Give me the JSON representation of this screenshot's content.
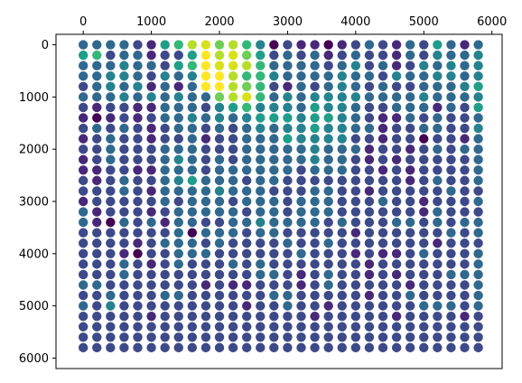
{
  "chart_data": {
    "type": "scatter",
    "title": "",
    "xlabel": "",
    "ylabel": "",
    "xlim": [
      -400,
      6150
    ],
    "ylim": [
      6200,
      -200
    ],
    "x_axis_position": "top",
    "y_inverted": true,
    "grid": false,
    "legend": "none",
    "colormap": "viridis",
    "x_ticks": [
      0,
      1000,
      2000,
      3000,
      4000,
      5000,
      6000
    ],
    "x_tick_labels": [
      "0",
      "1000",
      "2000",
      "3000",
      "4000",
      "5000",
      "6000"
    ],
    "y_ticks": [
      0,
      1000,
      2000,
      3000,
      4000,
      5000,
      6000
    ],
    "y_tick_labels": [
      "0",
      "1000",
      "2000",
      "3000",
      "4000",
      "5000",
      "6000"
    ],
    "grid_x": [
      0,
      200,
      400,
      600,
      800,
      1000,
      1200,
      1400,
      1600,
      1800,
      2000,
      2200,
      2400,
      2600,
      2800,
      3000,
      3200,
      3400,
      3600,
      3800,
      4000,
      4200,
      4400,
      4600,
      4800,
      5000,
      5200,
      5400,
      5600,
      5800
    ],
    "grid_y": [
      0,
      200,
      400,
      600,
      800,
      1000,
      1200,
      1400,
      1600,
      1800,
      2000,
      2200,
      2400,
      2600,
      2800,
      3000,
      3200,
      3400,
      3600,
      3800,
      4000,
      4200,
      4400,
      4600,
      4800,
      5000,
      5200,
      5400,
      5600,
      5800
    ],
    "values_note": "",
    "values": [
      [
        3,
        3,
        3,
        3,
        2,
        1,
        5,
        6,
        8,
        9,
        7,
        8,
        6,
        4,
        0,
        2,
        1,
        1,
        0,
        1,
        2,
        3,
        2,
        1,
        3,
        2,
        5,
        3,
        1,
        3
      ],
      [
        5,
        6,
        2,
        3,
        3,
        1,
        2,
        2,
        5,
        10,
        8,
        9,
        7,
        5,
        2,
        3,
        2,
        3,
        1,
        2,
        3,
        2,
        2,
        1,
        3,
        2,
        4,
        3,
        3,
        4
      ],
      [
        3,
        3,
        3,
        4,
        3,
        3,
        2,
        5,
        6,
        10,
        9,
        9,
        8,
        6,
        3,
        3,
        3,
        3,
        2,
        3,
        4,
        2,
        3,
        1,
        2,
        4,
        3,
        4,
        3,
        4
      ],
      [
        3,
        3,
        4,
        4,
        3,
        2,
        4,
        3,
        4,
        10,
        10,
        8,
        6,
        6,
        4,
        3,
        3,
        3,
        3,
        4,
        3,
        3,
        2,
        4,
        3,
        3,
        4,
        4,
        3,
        4
      ],
      [
        2,
        3,
        4,
        3,
        4,
        1,
        3,
        1,
        3,
        10,
        10,
        8,
        7,
        6,
        2,
        1,
        3,
        2,
        3,
        4,
        3,
        2,
        3,
        2,
        2,
        3,
        3,
        3,
        4,
        5
      ],
      [
        3,
        3,
        3,
        4,
        3,
        4,
        3,
        4,
        3,
        3,
        7,
        8,
        9,
        6,
        3,
        4,
        3,
        4,
        4,
        4,
        4,
        3,
        3,
        3,
        3,
        4,
        3,
        3,
        3,
        4
      ],
      [
        2,
        1,
        2,
        2,
        1,
        1,
        3,
        3,
        3,
        2,
        4,
        5,
        6,
        4,
        4,
        4,
        3,
        5,
        4,
        4,
        3,
        2,
        2,
        3,
        3,
        3,
        1,
        3,
        2,
        5
      ],
      [
        1,
        0,
        1,
        2,
        1,
        2,
        3,
        3,
        4,
        3,
        4,
        3,
        4,
        5,
        5,
        5,
        4,
        5,
        5,
        4,
        3,
        2,
        1,
        1,
        3,
        2,
        3,
        2,
        2,
        3
      ],
      [
        2,
        3,
        2,
        3,
        2,
        1,
        2,
        3,
        3,
        2,
        3,
        2,
        3,
        4,
        3,
        4,
        4,
        5,
        4,
        4,
        3,
        3,
        1,
        2,
        2,
        3,
        3,
        2,
        2,
        4
      ],
      [
        1,
        2,
        3,
        2,
        2,
        1,
        2,
        2,
        3,
        1,
        2,
        2,
        3,
        3,
        3,
        5,
        4,
        4,
        4,
        4,
        2,
        2,
        1,
        2,
        2,
        0,
        2,
        2,
        1,
        3
      ],
      [
        2,
        2,
        3,
        2,
        2,
        2,
        3,
        3,
        3,
        2,
        2,
        2,
        3,
        3,
        3,
        3,
        3,
        4,
        3,
        3,
        3,
        1,
        2,
        2,
        1,
        2,
        3,
        2,
        3,
        3
      ],
      [
        1,
        2,
        3,
        2,
        2,
        2,
        3,
        4,
        3,
        2,
        3,
        2,
        3,
        3,
        3,
        3,
        3,
        4,
        3,
        3,
        2,
        1,
        2,
        1,
        2,
        2,
        2,
        2,
        2,
        3
      ],
      [
        1,
        1,
        2,
        2,
        1,
        1,
        3,
        3,
        3,
        2,
        3,
        3,
        3,
        3,
        3,
        3,
        2,
        3,
        3,
        3,
        2,
        2,
        1,
        2,
        1,
        2,
        2,
        2,
        2,
        3
      ],
      [
        2,
        1,
        2,
        3,
        2,
        2,
        3,
        4,
        5,
        3,
        3,
        3,
        2,
        3,
        3,
        2,
        2,
        2,
        2,
        2,
        2,
        2,
        2,
        2,
        1,
        2,
        3,
        2,
        2,
        3
      ],
      [
        2,
        2,
        2,
        3,
        2,
        1,
        3,
        3,
        3,
        3,
        4,
        3,
        3,
        3,
        2,
        2,
        2,
        3,
        3,
        2,
        2,
        1,
        2,
        2,
        2,
        2,
        2,
        3,
        2,
        2
      ],
      [
        1,
        2,
        2,
        2,
        2,
        2,
        3,
        2,
        3,
        3,
        3,
        2,
        3,
        3,
        3,
        2,
        3,
        3,
        3,
        2,
        2,
        2,
        3,
        2,
        2,
        1,
        2,
        2,
        2,
        3
      ],
      [
        3,
        1,
        2,
        2,
        2,
        1,
        2,
        3,
        3,
        3,
        3,
        3,
        2,
        3,
        3,
        2,
        3,
        3,
        3,
        2,
        2,
        2,
        2,
        2,
        2,
        1,
        3,
        2,
        2,
        2
      ],
      [
        3,
        1,
        0,
        3,
        2,
        3,
        1,
        3,
        3,
        2,
        2,
        3,
        3,
        4,
        3,
        3,
        3,
        3,
        2,
        3,
        2,
        2,
        2,
        3,
        3,
        2,
        3,
        2,
        3,
        3
      ],
      [
        2,
        2,
        2,
        2,
        2,
        2,
        2,
        3,
        0,
        3,
        3,
        3,
        2,
        3,
        3,
        2,
        2,
        2,
        2,
        2,
        1,
        2,
        2,
        2,
        2,
        2,
        2,
        3,
        2,
        3
      ],
      [
        2,
        2,
        2,
        2,
        1,
        2,
        3,
        3,
        3,
        2,
        3,
        2,
        2,
        2,
        2,
        3,
        2,
        2,
        3,
        2,
        2,
        2,
        2,
        2,
        2,
        2,
        1,
        2,
        2,
        2
      ],
      [
        2,
        2,
        2,
        1,
        0,
        2,
        2,
        3,
        3,
        3,
        2,
        2,
        2,
        2,
        2,
        2,
        3,
        2,
        2,
        2,
        1,
        2,
        1,
        1,
        2,
        3,
        2,
        2,
        2,
        3
      ],
      [
        2,
        2,
        2,
        3,
        2,
        1,
        2,
        3,
        2,
        2,
        2,
        3,
        2,
        3,
        2,
        2,
        2,
        2,
        2,
        2,
        2,
        1,
        2,
        2,
        2,
        2,
        2,
        2,
        2,
        3
      ],
      [
        2,
        2,
        2,
        3,
        2,
        2,
        2,
        2,
        2,
        2,
        2,
        2,
        2,
        3,
        3,
        2,
        1,
        2,
        3,
        2,
        2,
        1,
        2,
        1,
        2,
        2,
        2,
        3,
        3,
        3
      ],
      [
        3,
        3,
        2,
        2,
        2,
        2,
        2,
        2,
        2,
        1,
        2,
        1,
        1,
        2,
        2,
        2,
        1,
        2,
        3,
        2,
        2,
        2,
        2,
        2,
        1,
        2,
        2,
        2,
        2,
        3
      ],
      [
        2,
        2,
        3,
        2,
        2,
        2,
        3,
        3,
        2,
        2,
        2,
        2,
        2,
        2,
        3,
        3,
        2,
        2,
        2,
        2,
        2,
        1,
        2,
        2,
        3,
        2,
        2,
        2,
        2,
        3
      ],
      [
        3,
        2,
        4,
        2,
        2,
        2,
        2,
        2,
        2,
        2,
        2,
        2,
        1,
        2,
        2,
        3,
        2,
        2,
        1,
        2,
        2,
        2,
        2,
        2,
        2,
        3,
        3,
        3,
        2,
        3
      ],
      [
        2,
        2,
        2,
        2,
        2,
        1,
        2,
        2,
        2,
        2,
        2,
        2,
        2,
        2,
        2,
        2,
        2,
        1,
        2,
        2,
        2,
        2,
        2,
        1,
        2,
        2,
        2,
        2,
        1,
        2
      ],
      [
        2,
        2,
        2,
        2,
        2,
        2,
        2,
        2,
        2,
        2,
        2,
        2,
        2,
        2,
        2,
        2,
        2,
        2,
        2,
        2,
        2,
        2,
        2,
        2,
        2,
        2,
        2,
        2,
        2,
        2
      ],
      [
        2,
        2,
        2,
        2,
        2,
        2,
        2,
        2,
        2,
        2,
        2,
        2,
        2,
        2,
        2,
        2,
        2,
        2,
        2,
        2,
        2,
        2,
        2,
        2,
        2,
        2,
        2,
        2,
        2,
        2
      ],
      [
        2,
        2,
        2,
        2,
        2,
        2,
        2,
        2,
        2,
        2,
        2,
        2,
        2,
        2,
        2,
        2,
        2,
        2,
        2,
        2,
        2,
        2,
        2,
        2,
        2,
        2,
        2,
        2,
        2,
        2
      ]
    ],
    "color_scale": [
      "#440154",
      "#482878",
      "#3e4989",
      "#31688e",
      "#26828e",
      "#1f9e89",
      "#35b779",
      "#6ece58",
      "#b5de2b",
      "#d8e219",
      "#fde725"
    ]
  }
}
